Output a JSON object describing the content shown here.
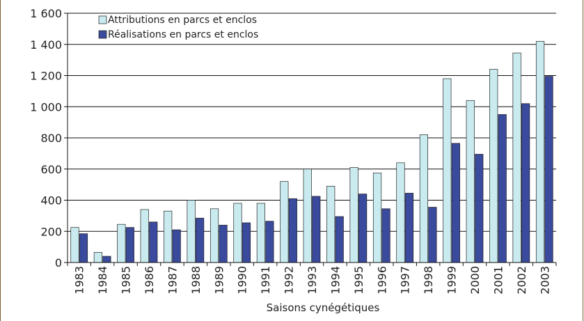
{
  "chart_data": {
    "type": "bar",
    "title": "",
    "xlabel": "Saisons cynégétiques",
    "ylabel": "",
    "ylim": [
      0,
      1600
    ],
    "yticks": [
      0,
      200,
      400,
      600,
      800,
      1000,
      1200,
      1400,
      1600
    ],
    "ytick_labels": [
      "0",
      "200",
      "400",
      "600",
      "800",
      "1 000",
      "1 200",
      "1 400",
      "1 600"
    ],
    "grid": true,
    "legend_position": "top-left",
    "categories": [
      "1983",
      "1984",
      "1985",
      "1986",
      "1987",
      "1988",
      "1989",
      "1990",
      "1991",
      "1992",
      "1993",
      "1994",
      "1995",
      "1996",
      "1997",
      "1998",
      "1999",
      "2000",
      "2001",
      "2002",
      "2003"
    ],
    "series": [
      {
        "name": "Attributions en parcs et enclos",
        "color": "#c9ebf0",
        "values": [
          225,
          65,
          245,
          340,
          330,
          400,
          345,
          380,
          380,
          520,
          600,
          490,
          610,
          575,
          640,
          820,
          1180,
          1040,
          1240,
          1345,
          1420
        ]
      },
      {
        "name": "Réalisations en parcs et enclos",
        "color": "#3a4a9c",
        "values": [
          185,
          40,
          225,
          260,
          210,
          285,
          240,
          255,
          265,
          410,
          425,
          295,
          440,
          345,
          445,
          355,
          765,
          695,
          950,
          1020,
          1195
        ]
      }
    ]
  }
}
